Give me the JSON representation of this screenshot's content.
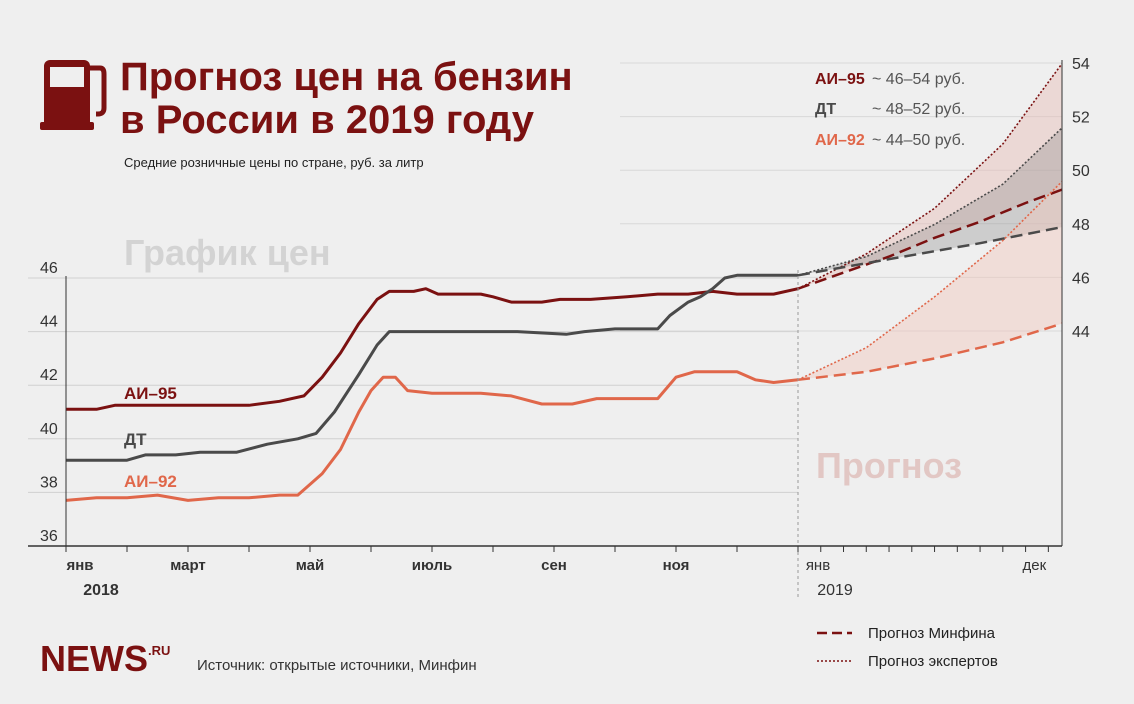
{
  "header": {
    "title_line1": "Прогноз цен на бензин",
    "title_line2": "в России в 2019 году",
    "subtitle": "Средние розничные цены по стране, руб. за литр",
    "section_history": "График цен",
    "section_forecast": "Прогноз"
  },
  "ranges": [
    {
      "name": "АИ–95",
      "value": "~ 46–54 руб.",
      "color": "#7b1111"
    },
    {
      "name": "ДТ",
      "value": "~ 48–52 руб.",
      "color": "#4a4a4a"
    },
    {
      "name": "АИ–92",
      "value": "~ 44–50 руб.",
      "color": "#e0674a"
    }
  ],
  "legend": {
    "minfin": "Прогноз Минфина",
    "experts": "Прогноз экспертов"
  },
  "source": "Источник: открытые источники, Минфин",
  "logo": {
    "text": "NEWS",
    "suffix": ".RU"
  },
  "chart_data": {
    "type": "line",
    "ylim": [
      36,
      54
    ],
    "yticks_left": [
      36,
      38,
      40,
      42,
      44,
      46
    ],
    "yticks_right": [
      44,
      46,
      48,
      50,
      52,
      54
    ],
    "x_months": [
      {
        "label": "янв",
        "m": 0
      },
      {
        "label": "март",
        "m": 2
      },
      {
        "label": "май",
        "m": 4
      },
      {
        "label": "июль",
        "m": 6
      },
      {
        "label": "сен",
        "m": 8
      },
      {
        "label": "ноя",
        "m": 10
      },
      {
        "label": "янв",
        "m": 12
      },
      {
        "label": "дек",
        "m": 23
      }
    ],
    "year_labels": [
      {
        "label": "2018",
        "m": 0
      },
      {
        "label": "2019",
        "m": 12
      }
    ],
    "series": [
      {
        "name": "АИ–95",
        "color": "#7b1111",
        "points": [
          [
            0,
            41.1
          ],
          [
            0.5,
            41.1
          ],
          [
            0.8,
            41.25
          ],
          [
            1.5,
            41.25
          ],
          [
            2.2,
            41.25
          ],
          [
            3,
            41.25
          ],
          [
            3.5,
            41.4
          ],
          [
            3.9,
            41.6
          ],
          [
            4.2,
            42.3
          ],
          [
            4.5,
            43.2
          ],
          [
            4.8,
            44.3
          ],
          [
            5.1,
            45.2
          ],
          [
            5.3,
            45.5
          ],
          [
            5.7,
            45.5
          ],
          [
            5.9,
            45.6
          ],
          [
            6.1,
            45.4
          ],
          [
            6.8,
            45.4
          ],
          [
            7.0,
            45.3
          ],
          [
            7.3,
            45.1
          ],
          [
            7.8,
            45.1
          ],
          [
            8.1,
            45.2
          ],
          [
            8.6,
            45.2
          ],
          [
            9.2,
            45.3
          ],
          [
            9.7,
            45.4
          ],
          [
            10.2,
            45.4
          ],
          [
            10.6,
            45.5
          ],
          [
            11.0,
            45.4
          ],
          [
            11.6,
            45.4
          ],
          [
            12.0,
            45.6
          ]
        ]
      },
      {
        "name": "ДТ",
        "color": "#4a4a4a",
        "points": [
          [
            0,
            39.2
          ],
          [
            1.0,
            39.2
          ],
          [
            1.3,
            39.4
          ],
          [
            1.8,
            39.4
          ],
          [
            2.2,
            39.5
          ],
          [
            2.8,
            39.5
          ],
          [
            3.3,
            39.8
          ],
          [
            3.8,
            40.0
          ],
          [
            4.1,
            40.2
          ],
          [
            4.4,
            41.0
          ],
          [
            4.8,
            42.4
          ],
          [
            5.1,
            43.5
          ],
          [
            5.3,
            44.0
          ],
          [
            6.3,
            44.0
          ],
          [
            7.4,
            44.0
          ],
          [
            8.2,
            43.9
          ],
          [
            8.5,
            44.0
          ],
          [
            9.0,
            44.1
          ],
          [
            9.7,
            44.1
          ],
          [
            9.9,
            44.6
          ],
          [
            10.2,
            45.1
          ],
          [
            10.4,
            45.3
          ],
          [
            10.6,
            45.6
          ],
          [
            10.8,
            46.0
          ],
          [
            11.0,
            46.1
          ],
          [
            12.0,
            46.1
          ]
        ]
      },
      {
        "name": "АИ–92",
        "color": "#e0674a",
        "points": [
          [
            0,
            37.7
          ],
          [
            0.5,
            37.8
          ],
          [
            1.0,
            37.8
          ],
          [
            1.5,
            37.9
          ],
          [
            2.0,
            37.7
          ],
          [
            2.5,
            37.8
          ],
          [
            3.0,
            37.8
          ],
          [
            3.5,
            37.9
          ],
          [
            3.8,
            37.9
          ],
          [
            4.0,
            38.3
          ],
          [
            4.2,
            38.7
          ],
          [
            4.5,
            39.6
          ],
          [
            4.8,
            41.0
          ],
          [
            5.0,
            41.8
          ],
          [
            5.2,
            42.3
          ],
          [
            5.4,
            42.3
          ],
          [
            5.6,
            41.8
          ],
          [
            6.0,
            41.7
          ],
          [
            6.8,
            41.7
          ],
          [
            7.3,
            41.6
          ],
          [
            7.8,
            41.3
          ],
          [
            8.3,
            41.3
          ],
          [
            8.7,
            41.5
          ],
          [
            9.3,
            41.5
          ],
          [
            9.7,
            41.5
          ],
          [
            10.0,
            42.3
          ],
          [
            10.3,
            42.5
          ],
          [
            11.0,
            42.5
          ],
          [
            11.3,
            42.2
          ],
          [
            11.6,
            42.1
          ],
          [
            12.0,
            42.2
          ]
        ]
      }
    ],
    "forecast": [
      {
        "name": "АИ–95",
        "color": "#7b1111",
        "minfin": [
          [
            12,
            45.6
          ],
          [
            14,
            46.2
          ],
          [
            16,
            46.8
          ],
          [
            18,
            47.5
          ],
          [
            20,
            48.1
          ],
          [
            22,
            48.8
          ],
          [
            23.6,
            49.3
          ]
        ],
        "expert_high": [
          [
            12,
            45.6
          ],
          [
            15,
            46.9
          ],
          [
            18,
            48.6
          ],
          [
            21,
            51.0
          ],
          [
            23.6,
            54.0
          ]
        ]
      },
      {
        "name": "ДТ",
        "color": "#4a4a4a",
        "minfin": [
          [
            12,
            46.1
          ],
          [
            16,
            46.7
          ],
          [
            20,
            47.3
          ],
          [
            23.6,
            47.9
          ]
        ],
        "expert_high": [
          [
            12,
            46.1
          ],
          [
            15,
            46.8
          ],
          [
            18,
            48.0
          ],
          [
            21,
            49.5
          ],
          [
            23.6,
            51.6
          ]
        ]
      },
      {
        "name": "АИ–92",
        "color": "#e0674a",
        "minfin": [
          [
            12,
            42.2
          ],
          [
            15,
            42.5
          ],
          [
            18,
            43.0
          ],
          [
            21,
            43.6
          ],
          [
            23.6,
            44.3
          ]
        ],
        "expert_high": [
          [
            12,
            42.2
          ],
          [
            15,
            43.4
          ],
          [
            18,
            45.3
          ],
          [
            21,
            47.4
          ],
          [
            23.6,
            49.6
          ]
        ]
      }
    ]
  }
}
